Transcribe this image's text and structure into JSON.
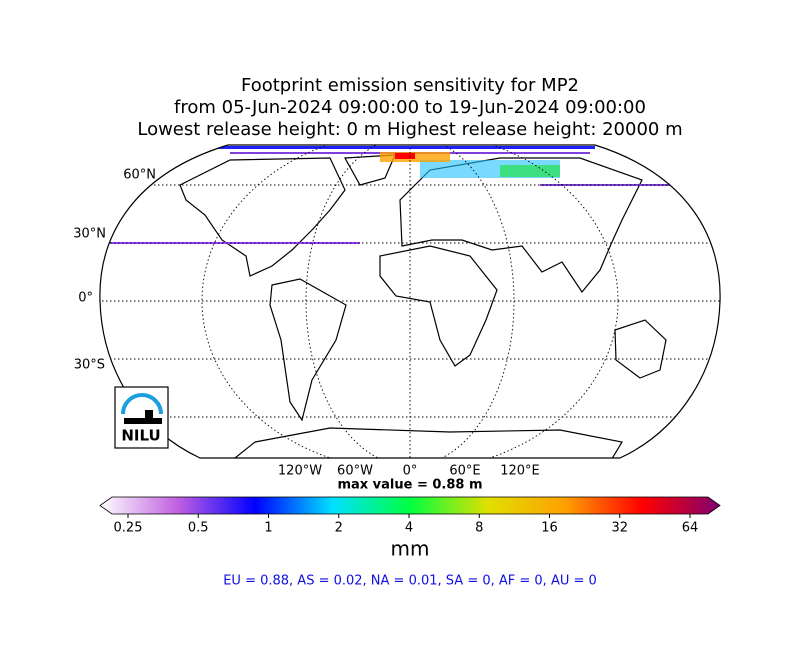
{
  "title": [
    "Footprint emission sensitivity for MP2",
    "from 05-Jun-2024 09:00:00 to 19-Jun-2024 09:00:00",
    "Lowest release height: 0 m       Highest release height: 20000 m"
  ],
  "map": {
    "lat_labels": [
      "60°N",
      "30°N",
      "0°",
      "30°S"
    ],
    "lon_labels": [
      "120°W",
      "60°W",
      "0°",
      "60°E",
      "120°E"
    ],
    "logo": "NILU"
  },
  "max_value": "max value = 0.88 m",
  "colorbar": {
    "ticks": [
      0.25,
      0.5,
      1,
      2,
      4,
      8,
      16,
      32,
      64
    ],
    "log_base": 2,
    "unit": "mm",
    "colors": [
      "#ffffff",
      "#c060e0",
      "#0000ff",
      "#00e0ff",
      "#00ff40",
      "#e0e000",
      "#ffa000",
      "#ff0000",
      "#800070"
    ]
  },
  "summary": "EU = 0.88,  AS = 0.02,  NA = 0.01,  SA = 0,  AF = 0,  AU = 0"
}
